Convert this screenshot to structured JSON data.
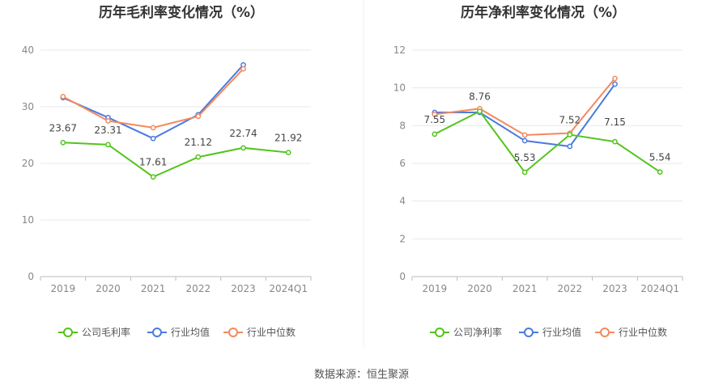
{
  "colors": {
    "company": "#52c41a",
    "industry_avg": "#4a7be0",
    "industry_median": "#f4895f",
    "grid": "#e8e8e8",
    "axis": "#bbbbbb"
  },
  "source_text": "数据来源：恒生聚源",
  "chart_data": [
    {
      "type": "line",
      "title": "历年毛利率变化情况（%）",
      "categories": [
        "2019",
        "2020",
        "2021",
        "2022",
        "2023",
        "2024Q1"
      ],
      "ylim": [
        0,
        40
      ],
      "yticks": [
        0,
        10,
        20,
        30,
        40
      ],
      "grid": true,
      "legend_position": "bottom",
      "series": [
        {
          "name": "公司毛利率",
          "color_key": "company",
          "values": [
            23.67,
            23.31,
            17.61,
            21.12,
            22.74,
            21.92
          ],
          "labels": [
            "23.67",
            "23.31",
            "17.61",
            "21.12",
            "22.74",
            "21.92"
          ]
        },
        {
          "name": "行业均值",
          "color_key": "industry_avg",
          "values": [
            31.6,
            28.1,
            24.4,
            28.6,
            37.4,
            null
          ]
        },
        {
          "name": "行业中位数",
          "color_key": "industry_median",
          "values": [
            31.8,
            27.5,
            26.3,
            28.3,
            36.7,
            null
          ]
        }
      ]
    },
    {
      "type": "line",
      "title": "历年净利率变化情况（%）",
      "categories": [
        "2019",
        "2020",
        "2021",
        "2022",
        "2023",
        "2024Q1"
      ],
      "ylim": [
        0,
        12
      ],
      "yticks": [
        0,
        2,
        4,
        6,
        8,
        10,
        12
      ],
      "grid": true,
      "legend_position": "bottom",
      "series": [
        {
          "name": "公司净利率",
          "color_key": "company",
          "values": [
            7.55,
            8.76,
            5.53,
            7.52,
            7.15,
            5.54
          ],
          "labels": [
            "7.55",
            "8.76",
            "5.53",
            "7.52",
            "7.15",
            "5.54"
          ]
        },
        {
          "name": "行业均值",
          "color_key": "industry_avg",
          "values": [
            8.7,
            8.7,
            7.2,
            6.9,
            10.2,
            null
          ]
        },
        {
          "name": "行业中位数",
          "color_key": "industry_median",
          "values": [
            8.6,
            8.9,
            7.5,
            7.6,
            10.5,
            null
          ]
        }
      ]
    }
  ]
}
